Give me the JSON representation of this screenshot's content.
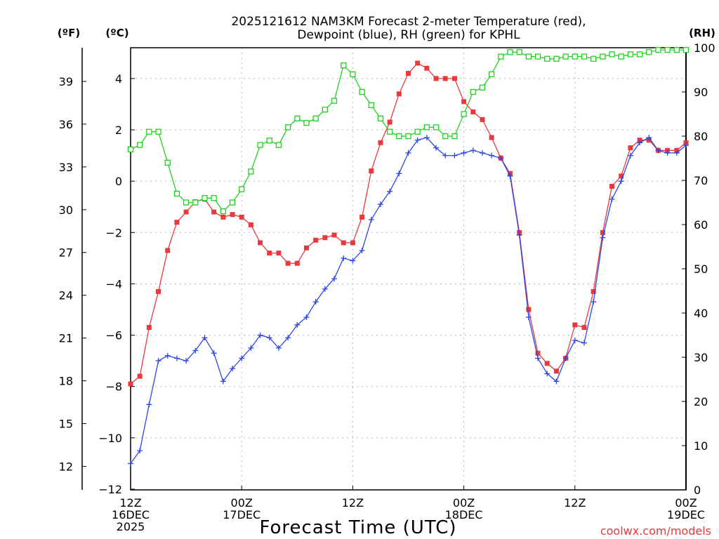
{
  "chart_data": {
    "type": "line",
    "title_line1": "2025121612 NAM3KM Forecast 2-meter Temperature (red),",
    "title_line2": "Dewpoint (blue), RH (green) for KPHL",
    "unit_f": "(ºF)",
    "unit_c": "(ºC)",
    "unit_rh": "(RH)",
    "xlabel": "Forecast Time (UTC)",
    "credit": "coolwx.com/models",
    "x_range_hours": [
      0,
      60
    ],
    "x_ticks": [
      {
        "hour": 0,
        "lines": [
          "12Z",
          "16DEC",
          "2025"
        ]
      },
      {
        "hour": 12,
        "lines": [
          "00Z",
          "17DEC"
        ]
      },
      {
        "hour": 24,
        "lines": [
          "12Z"
        ]
      },
      {
        "hour": 36,
        "lines": [
          "00Z",
          "18DEC"
        ]
      },
      {
        "hour": 48,
        "lines": [
          "12Z"
        ]
      },
      {
        "hour": 60,
        "lines": [
          "00Z",
          "19DEC"
        ]
      }
    ],
    "celsius_range": [
      -12,
      5.2
    ],
    "celsius_ticks": [
      "4",
      "2",
      "0",
      "−2",
      "−4",
      "−6",
      "−8",
      "−10",
      "−12"
    ],
    "celsius_tick_values": [
      4,
      2,
      0,
      -2,
      -4,
      -6,
      -8,
      -10,
      -12
    ],
    "fahrenheit_ticks": [
      "39",
      "36",
      "33",
      "30",
      "27",
      "24",
      "21",
      "18",
      "15",
      "12"
    ],
    "fahrenheit_tick_values": [
      39,
      36,
      33,
      30,
      27,
      24,
      21,
      18,
      15,
      12
    ],
    "rh_range": [
      0,
      100
    ],
    "rh_ticks": [
      "100",
      "90",
      "80",
      "70",
      "60",
      "50",
      "40",
      "30",
      "20",
      "10",
      "0"
    ],
    "rh_tick_values": [
      100,
      90,
      80,
      70,
      60,
      50,
      40,
      30,
      20,
      10,
      0
    ],
    "grid": true,
    "series": [
      {
        "name": "2-meter Temperature",
        "unit": "C",
        "color": "#e8393d",
        "marker": "filled-square",
        "x": [
          0,
          1,
          2,
          3,
          4,
          5,
          6,
          7,
          8,
          9,
          10,
          11,
          12,
          13,
          14,
          15,
          16,
          17,
          18,
          19,
          20,
          21,
          22,
          23,
          24,
          25,
          26,
          27,
          28,
          29,
          30,
          31,
          32,
          33,
          34,
          35,
          36,
          37,
          38,
          39,
          40,
          41,
          42,
          43,
          44,
          45,
          46,
          47,
          48,
          49,
          50,
          51,
          52,
          53,
          54,
          55,
          56,
          57,
          58,
          59,
          60
        ],
        "values": [
          -7.9,
          -7.6,
          -5.7,
          -4.3,
          -2.7,
          -1.6,
          -1.2,
          -0.8,
          -0.7,
          -1.2,
          -1.4,
          -1.3,
          -1.4,
          -1.7,
          -2.4,
          -2.8,
          -2.8,
          -3.2,
          -3.2,
          -2.6,
          -2.3,
          -2.2,
          -2.1,
          -2.4,
          -2.4,
          -1.4,
          0.4,
          1.5,
          2.3,
          3.4,
          4.2,
          4.6,
          4.4,
          4.0,
          4.0,
          4.0,
          3.1,
          2.7,
          2.4,
          1.7,
          0.9,
          0.3,
          -2.0,
          -5.0,
          -6.7,
          -7.1,
          -7.4,
          -6.9,
          -5.6,
          -5.7,
          -4.3,
          -2.0,
          -0.2,
          0.2,
          1.3,
          1.6,
          1.6,
          1.2,
          1.2,
          1.2,
          1.5
        ]
      },
      {
        "name": "Dewpoint",
        "unit": "C",
        "color": "#2c47e6",
        "marker": "plus",
        "x": [
          0,
          1,
          2,
          3,
          4,
          5,
          6,
          7,
          8,
          9,
          10,
          11,
          12,
          13,
          14,
          15,
          16,
          17,
          18,
          19,
          20,
          21,
          22,
          23,
          24,
          25,
          26,
          27,
          28,
          29,
          30,
          31,
          32,
          33,
          34,
          35,
          36,
          37,
          38,
          39,
          40,
          41,
          42,
          43,
          44,
          45,
          46,
          47,
          48,
          49,
          50,
          51,
          52,
          53,
          54,
          55,
          56,
          57,
          58,
          59,
          60
        ],
        "values": [
          -11.0,
          -10.5,
          -8.7,
          -7.0,
          -6.8,
          -6.9,
          -7.0,
          -6.6,
          -6.1,
          -6.7,
          -7.8,
          -7.3,
          -6.9,
          -6.5,
          -6.0,
          -6.1,
          -6.5,
          -6.1,
          -5.6,
          -5.3,
          -4.7,
          -4.2,
          -3.8,
          -3.0,
          -3.1,
          -2.7,
          -1.5,
          -0.9,
          -0.4,
          0.3,
          1.1,
          1.6,
          1.7,
          1.3,
          1.0,
          1.0,
          1.1,
          1.2,
          1.1,
          1.0,
          0.9,
          0.2,
          -2.1,
          -5.3,
          -6.9,
          -7.5,
          -7.8,
          -6.9,
          -6.2,
          -6.3,
          -4.7,
          -2.2,
          -0.7,
          0.0,
          1.0,
          1.5,
          1.7,
          1.2,
          1.1,
          1.1,
          1.4
        ]
      },
      {
        "name": "RH",
        "unit": "%",
        "color": "#1fd21f",
        "marker": "open-square",
        "x": [
          0,
          1,
          2,
          3,
          4,
          5,
          6,
          7,
          8,
          9,
          10,
          11,
          12,
          13,
          14,
          15,
          16,
          17,
          18,
          19,
          20,
          21,
          22,
          23,
          24,
          25,
          26,
          27,
          28,
          29,
          30,
          31,
          32,
          33,
          34,
          35,
          36,
          37,
          38,
          39,
          40,
          41,
          42,
          43,
          44,
          45,
          46,
          47,
          48,
          49,
          50,
          51,
          52,
          53,
          54,
          55,
          56,
          57,
          58,
          59,
          60
        ],
        "values": [
          77,
          78,
          81,
          81,
          74,
          67,
          65,
          65,
          66,
          66,
          63,
          65,
          68,
          72,
          78,
          79,
          78,
          82,
          84,
          83,
          84,
          86,
          88,
          96,
          94,
          90,
          87,
          84,
          81,
          80,
          80,
          81,
          82,
          82,
          80,
          80,
          85,
          90,
          91,
          94,
          98,
          99,
          99,
          98,
          98,
          97.5,
          97.5,
          98,
          98,
          98,
          97.5,
          98,
          98.5,
          98,
          98.5,
          98.5,
          99,
          99.5,
          99.5,
          99.5,
          99.5
        ]
      }
    ]
  }
}
